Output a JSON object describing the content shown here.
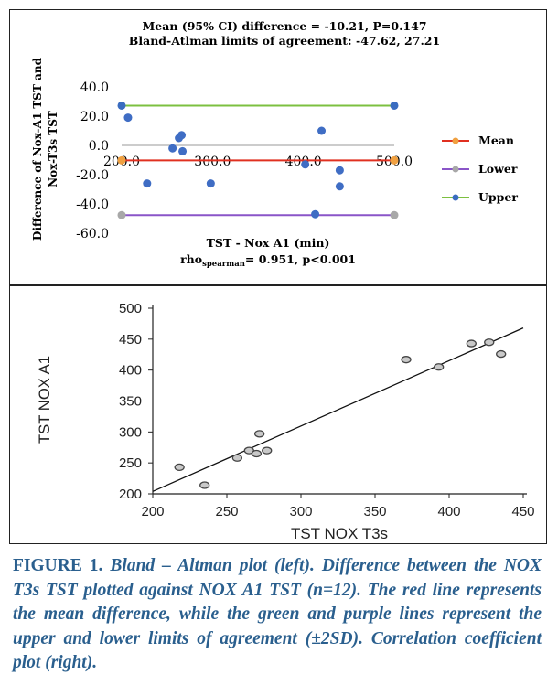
{
  "bland_altman": {
    "title_line1": "Mean (95% CI) difference = -10.21, P=0.147",
    "title_line2": "Bland-Atlman limits of agreement: -47.62, 27.21",
    "ylabel_line1": "Difference of Nox-A1 TST and",
    "ylabel_line2": "Nox-T3s TST",
    "xlabel": "TST  - Nox A1 (min)",
    "rho_prefix": "rho",
    "rho_subscript": "spearman",
    "rho_suffix": "= 0.951, p<0.001",
    "legend": [
      {
        "key": "mean",
        "label": "Mean",
        "line_color": "#e03020",
        "marker_color": "#f0a040"
      },
      {
        "key": "lower",
        "label": "Lower",
        "line_color": "#8a55c8",
        "marker_color": "#a8a8a8"
      },
      {
        "key": "upper",
        "label": "Upper",
        "line_color": "#7cc040",
        "marker_color": "#3a6cc0"
      }
    ],
    "point_color": "#3f6dc4"
  },
  "correlation": {
    "ylabel": "TST NOX A1",
    "xlabel": "TST NOX T3s",
    "point_fill": "#c9c9c9",
    "point_stroke": "#444444"
  },
  "caption": {
    "label": "FIGURE 1.",
    "text": " Bland – Altman plot (left). Difference between the NOX T3s TST plotted against NOX A1 TST (n=12). The red line represents the mean difference, while the green and purple lines represent the upper and lower limits of agreement (±2SD). Correlation coefficient plot (right)."
  },
  "chart_data": [
    {
      "type": "scatter",
      "title": "Mean (95% CI) difference = -10.21, P=0.147",
      "subtitle": "Bland-Atlman limits of agreement: -47.62, 27.21",
      "xlabel": "TST  - Nox A1 (min)",
      "ylabel": "Difference of Nox-A1 TST and Nox-T3s TST",
      "xlim": [
        200,
        500
      ],
      "ylim": [
        -60,
        40
      ],
      "xticks": [
        "200.0",
        "300.0",
        "400.0",
        "500.0"
      ],
      "yticks": [
        "40.0",
        "20.0",
        "0.0",
        "-20.0",
        "-40.0",
        "-60.0"
      ],
      "x_axis_crosses_y_at": 0,
      "grid": false,
      "legend_position": "right",
      "points": [
        {
          "x": 207,
          "y": 19
        },
        {
          "x": 228,
          "y": -26
        },
        {
          "x": 256,
          "y": -2
        },
        {
          "x": 263,
          "y": 5
        },
        {
          "x": 266,
          "y": 7
        },
        {
          "x": 267,
          "y": -4
        },
        {
          "x": 298,
          "y": -26
        },
        {
          "x": 402,
          "y": -13
        },
        {
          "x": 413,
          "y": -47
        },
        {
          "x": 420,
          "y": 10
        },
        {
          "x": 440,
          "y": -17
        },
        {
          "x": 440,
          "y": -28
        }
      ],
      "reference_lines": [
        {
          "name": "Mean",
          "y": -10.21,
          "x": [
            200,
            500
          ]
        },
        {
          "name": "Lower",
          "y": -47.62,
          "x": [
            200,
            500
          ]
        },
        {
          "name": "Upper",
          "y": 27.21,
          "x": [
            200,
            500
          ]
        }
      ]
    },
    {
      "type": "scatter",
      "xlabel": "TST NOX T3s",
      "ylabel": "TST NOX A1",
      "xlim": [
        200,
        450
      ],
      "ylim": [
        200,
        500
      ],
      "xticks": [
        "200",
        "250",
        "300",
        "350",
        "400",
        "450"
      ],
      "yticks": [
        "200",
        "250",
        "300",
        "350",
        "400",
        "450",
        "500"
      ],
      "grid": false,
      "points": [
        {
          "x": 218,
          "y": 243
        },
        {
          "x": 235,
          "y": 214
        },
        {
          "x": 257,
          "y": 258
        },
        {
          "x": 265,
          "y": 270
        },
        {
          "x": 270,
          "y": 265
        },
        {
          "x": 272,
          "y": 297
        },
        {
          "x": 277,
          "y": 270
        },
        {
          "x": 371,
          "y": 417
        },
        {
          "x": 393,
          "y": 405
        },
        {
          "x": 415,
          "y": 443
        },
        {
          "x": 427,
          "y": 445
        },
        {
          "x": 435,
          "y": 426
        }
      ],
      "fit_line": {
        "x": [
          200,
          450
        ],
        "y": [
          204,
          468
        ]
      }
    }
  ]
}
